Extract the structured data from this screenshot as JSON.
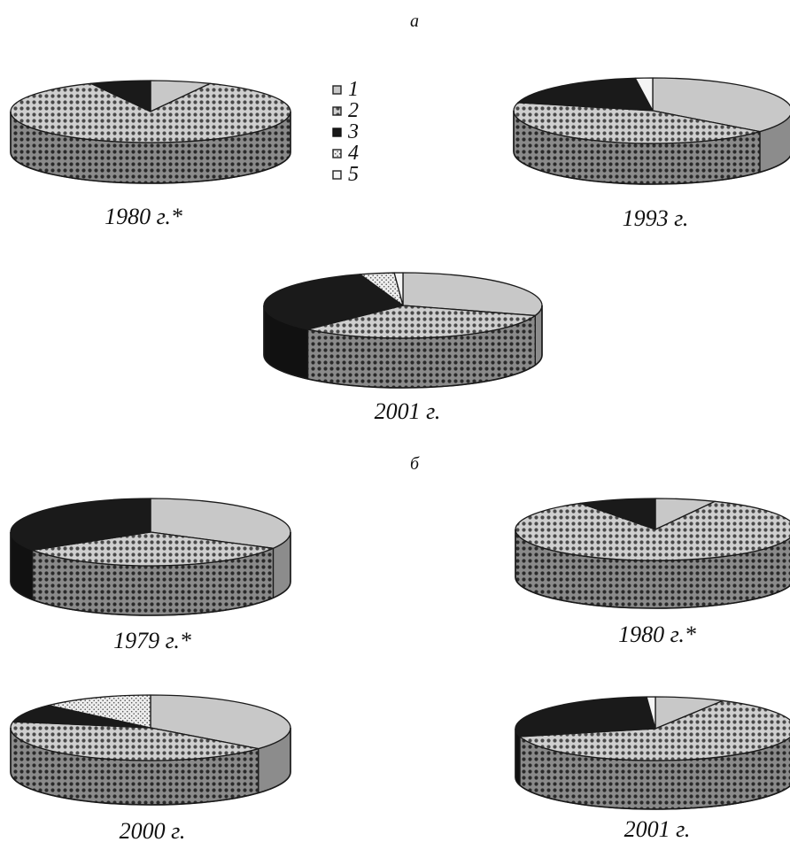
{
  "panels": [
    {
      "label": "а"
    },
    {
      "label": "б"
    }
  ],
  "legend": [
    {
      "label": "1",
      "pattern": "p-light",
      "color": "#c8c8c8"
    },
    {
      "label": "2",
      "pattern": "p-dots",
      "color": "#bdbdbd"
    },
    {
      "label": "3",
      "pattern": "p-black",
      "color": "#1a1a1a"
    },
    {
      "label": "4",
      "pattern": "p-stipple",
      "color": "#e6e6e6"
    },
    {
      "label": "5",
      "pattern": "p-white",
      "color": "#f5f5f5"
    }
  ],
  "chart_data": [
    {
      "type": "pie",
      "panel": "а",
      "title": "1980 г.*",
      "categories": [
        "1",
        "2",
        "3",
        "4",
        "5"
      ],
      "values": [
        7,
        86,
        7,
        0,
        0
      ]
    },
    {
      "type": "pie",
      "panel": "а",
      "title": "1993 г.",
      "categories": [
        "1",
        "2",
        "3",
        "4",
        "5"
      ],
      "values": [
        36,
        43,
        19,
        0,
        2
      ]
    },
    {
      "type": "pie",
      "panel": "а",
      "title": "2001 г.",
      "categories": [
        "1",
        "2",
        "3",
        "4",
        "5"
      ],
      "values": [
        30,
        32,
        33,
        4,
        1
      ]
    },
    {
      "type": "pie",
      "panel": "б",
      "title": "1979 г.*",
      "categories": [
        "1",
        "2",
        "3",
        "4",
        "5"
      ],
      "values": [
        33,
        33,
        34,
        0,
        0
      ]
    },
    {
      "type": "pie",
      "panel": "б",
      "title": "1980 г.*",
      "categories": [
        "1",
        "2",
        "3",
        "4",
        "5"
      ],
      "values": [
        7,
        84,
        9,
        0,
        0
      ]
    },
    {
      "type": "pie",
      "panel": "б",
      "title": "2000 г.",
      "categories": [
        "1",
        "2",
        "3",
        "4",
        "5"
      ],
      "values": [
        36,
        42,
        9,
        13,
        0
      ]
    },
    {
      "type": "pie",
      "panel": "б",
      "title": "2001 г.",
      "categories": [
        "1",
        "2",
        "3",
        "4",
        "5"
      ],
      "values": [
        8,
        63,
        28,
        0,
        1
      ]
    }
  ]
}
